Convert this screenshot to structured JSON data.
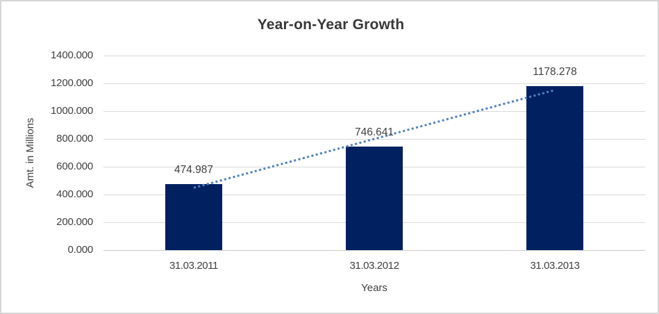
{
  "chart_data": {
    "type": "bar",
    "title": "Year-on-Year Growth",
    "xlabel": "Years",
    "ylabel": "Amt. in Millions",
    "categories": [
      "31.03.2011",
      "31.03.2012",
      "31.03.2013"
    ],
    "values": [
      474.987,
      746.641,
      1178.278
    ],
    "data_labels": [
      "474.987",
      "746.641",
      "1178.278"
    ],
    "ylim": [
      0,
      1400
    ],
    "ytick_step": 200,
    "ytick_labels": [
      "0.000",
      "200.000",
      "400.000",
      "600.000",
      "800.000",
      "1000.000",
      "1200.000",
      "1400.000"
    ],
    "grid": true,
    "legend": "none",
    "bar_color": "#002060",
    "trendline": {
      "type": "linear",
      "style": "dotted",
      "color": "#4E81BD",
      "start_value": 448.3,
      "end_value": 1151.6
    }
  },
  "colors": {
    "gridline": "#D9D9D9",
    "axis_line": "#C9C9C9",
    "text": "#404040",
    "title_text": "#383838",
    "border": "#D6D6D6",
    "background": "#FFFFFF"
  }
}
